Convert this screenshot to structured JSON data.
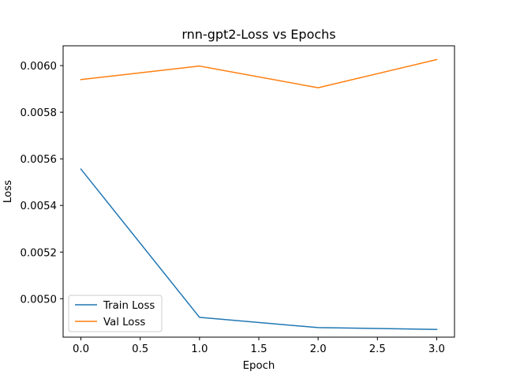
{
  "chart_data": {
    "type": "line",
    "title": "rnn-gpt2-Loss vs Epochs",
    "xlabel": "Epoch",
    "ylabel": "Loss",
    "x": [
      0,
      1,
      2,
      3
    ],
    "xlim": [
      -0.15,
      3.15
    ],
    "ylim": [
      0.004835,
      0.006085
    ],
    "xticks": [
      "0.0",
      "0.5",
      "1.0",
      "1.5",
      "2.0",
      "2.5",
      "3.0"
    ],
    "yticks": [
      "0.0050",
      "0.0052",
      "0.0054",
      "0.0056",
      "0.0058",
      "0.0060"
    ],
    "grid": false,
    "legend_position": "lower-left",
    "series": [
      {
        "name": "Train Loss",
        "color": "#1f77b4",
        "values": [
          0.005556,
          0.00492,
          0.004876,
          0.004868
        ]
      },
      {
        "name": "Val Loss",
        "color": "#ff7f0e",
        "values": [
          0.00594,
          0.005998,
          0.005905,
          0.006026
        ]
      }
    ]
  }
}
